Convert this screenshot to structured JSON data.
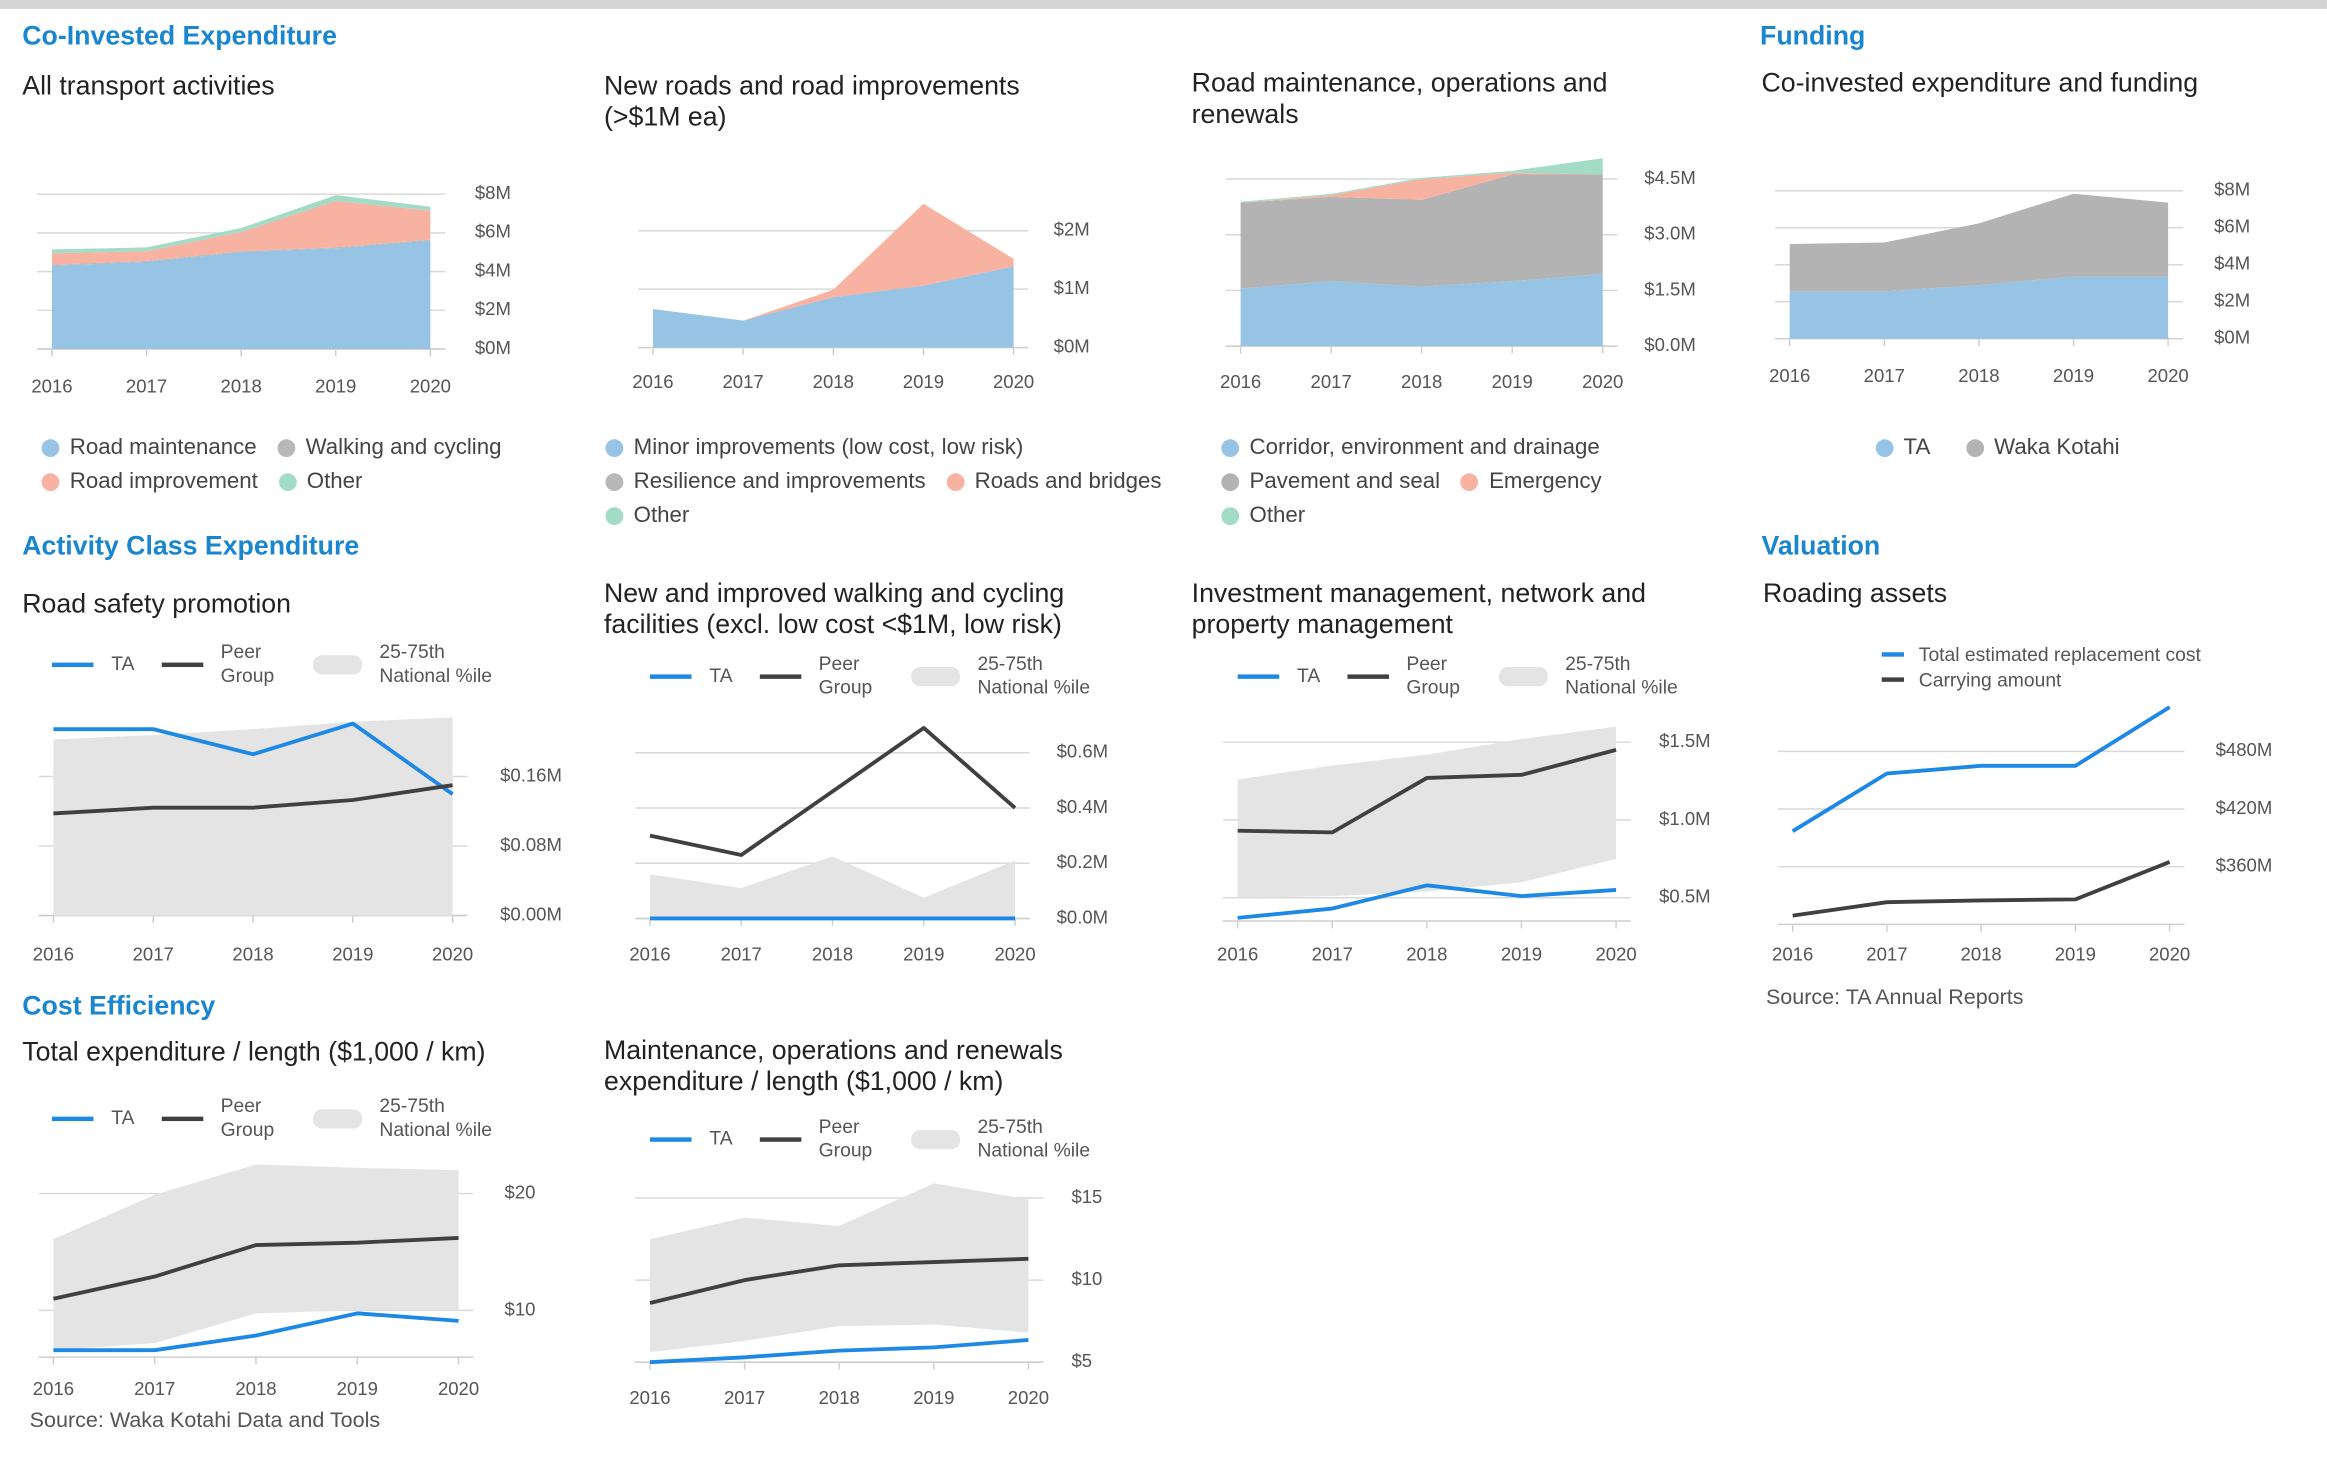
{
  "sections": [
    {
      "title": "Co-Invested Expenditure"
    },
    {
      "title": "Funding"
    },
    {
      "title": "Activity Class Expenditure"
    },
    {
      "title": "Valuation"
    },
    {
      "title": "Cost Efficiency"
    }
  ],
  "sources": [
    "Source: Waka Kotahi Data and Tools",
    "Source: TA Annual Reports"
  ],
  "chart_data": [
    {
      "type": "area",
      "stacked": true,
      "title": "All transport activities",
      "categories": [
        "2016",
        "2017",
        "2018",
        "2019",
        "2020"
      ],
      "series": [
        {
          "name": "Road maintenance",
          "color": "#97c3e5",
          "values": [
            4300000,
            4500000,
            5000000,
            5200000,
            5600000
          ]
        },
        {
          "name": "Walking and cycling",
          "color": "#b8b8b8",
          "values": [
            50000,
            50000,
            50000,
            50000,
            50000
          ]
        },
        {
          "name": "Road improvement",
          "color": "#f8b2a2",
          "values": [
            600000,
            500000,
            1000000,
            2400000,
            1500000
          ]
        },
        {
          "name": "Other",
          "color": "#a2dcc6",
          "values": [
            200000,
            200000,
            200000,
            300000,
            200000
          ]
        }
      ],
      "ylim": [
        0,
        8500000
      ],
      "yticks": [
        {
          "value": 0,
          "label": "$0M"
        },
        {
          "value": 2000000,
          "label": "$2M"
        },
        {
          "value": 4000000,
          "label": "$4M"
        },
        {
          "value": 6000000,
          "label": "$6M"
        },
        {
          "value": 8000000,
          "label": "$8M"
        }
      ],
      "grid": true
    },
    {
      "type": "area",
      "stacked": true,
      "title": "New roads and road improvements (>$1M ea)",
      "categories": [
        "2016",
        "2017",
        "2018",
        "2019",
        "2020"
      ],
      "series": [
        {
          "name": "Minor improvements (low cost, low risk)",
          "color": "#97c3e5",
          "values": [
            660000,
            460000,
            860000,
            1060000,
            1390000
          ]
        },
        {
          "name": "Resilience and improvements",
          "color": "#b8b8b8",
          "values": [
            0,
            0,
            0,
            0,
            0
          ]
        },
        {
          "name": "Roads and bridges",
          "color": "#f8b2a2",
          "values": [
            0,
            0,
            130000,
            1400000,
            130000
          ]
        },
        {
          "name": "Other",
          "color": "#a2dcc6",
          "values": [
            0,
            0,
            0,
            0,
            0
          ]
        }
      ],
      "ylim": [
        0,
        2500000
      ],
      "yticks": [
        {
          "value": 0,
          "label": "$0M"
        },
        {
          "value": 1000000,
          "label": "$1M"
        },
        {
          "value": 2000000,
          "label": "$2M"
        }
      ],
      "grid": true
    },
    {
      "type": "area",
      "stacked": true,
      "title": "Road maintenance, operations and renewals",
      "categories": [
        "2016",
        "2017",
        "2018",
        "2019",
        "2020"
      ],
      "series": [
        {
          "name": "Corridor, environment and drainage",
          "color": "#97c3e5",
          "values": [
            1550000,
            1750000,
            1600000,
            1750000,
            1950000
          ]
        },
        {
          "name": "Pavement and seal",
          "color": "#b3b3b3",
          "values": [
            2310000,
            2270000,
            2340000,
            2870000,
            2670000
          ]
        },
        {
          "name": "Emergency",
          "color": "#f8b2a2",
          "values": [
            0,
            50000,
            560000,
            50000,
            0
          ]
        },
        {
          "name": "Other",
          "color": "#a2dcc6",
          "values": [
            30000,
            30000,
            30000,
            50000,
            440000
          ]
        }
      ],
      "ylim": [
        0,
        5100000
      ],
      "yticks": [
        {
          "value": 0,
          "label": "$0.0M"
        },
        {
          "value": 1500000,
          "label": "$1.5M"
        },
        {
          "value": 3000000,
          "label": "$3.0M"
        },
        {
          "value": 4500000,
          "label": "$4.5M"
        }
      ],
      "grid": true
    },
    {
      "type": "area",
      "stacked": true,
      "title": "Co-invested expenditure and funding",
      "categories": [
        "2016",
        "2017",
        "2018",
        "2019",
        "2020"
      ],
      "series": [
        {
          "name": "TA",
          "color": "#97c3e5",
          "values": [
            2560000,
            2560000,
            2900000,
            3360000,
            3360000
          ]
        },
        {
          "name": "Waka Kotahi",
          "color": "#b3b3b3",
          "values": [
            2560000,
            2640000,
            3340000,
            4480000,
            4000000
          ]
        }
      ],
      "ylim": [
        0,
        8500000
      ],
      "yticks": [
        {
          "value": 0,
          "label": "$0M"
        },
        {
          "value": 2000000,
          "label": "$2M"
        },
        {
          "value": 4000000,
          "label": "$4M"
        },
        {
          "value": 6000000,
          "label": "$6M"
        },
        {
          "value": 8000000,
          "label": "$8M"
        }
      ],
      "grid": true
    },
    {
      "type": "band-line",
      "title": "Road safety promotion",
      "categories": [
        "2016",
        "2017",
        "2018",
        "2019",
        "2020"
      ],
      "series": [
        {
          "name": "TA",
          "color": "#1e88e5",
          "values": [
            214500,
            214500,
            185500,
            221000,
            139600
          ]
        },
        {
          "name": "Peer Group",
          "color": "#404040",
          "values": [
            117400,
            124000,
            124000,
            133000,
            150000
          ]
        },
        {
          "name": "25-75th National %ile",
          "color": "#e4e4e4",
          "low": [
            0,
            0,
            0,
            0,
            0
          ],
          "high": [
            202600,
            207700,
            214500,
            223000,
            228000
          ]
        }
      ],
      "ylim": [
        0,
        240000
      ],
      "yticks": [
        {
          "value": 0,
          "label": "$0.00M"
        },
        {
          "value": 80000,
          "label": "$0.08M"
        },
        {
          "value": 160000,
          "label": "$0.16M"
        }
      ],
      "grid": true
    },
    {
      "type": "band-line",
      "title": "New and improved walking and cycling facilities (excl. low cost <$1M, low risk)",
      "categories": [
        "2016",
        "2017",
        "2018",
        "2019",
        "2020"
      ],
      "series": [
        {
          "name": "TA",
          "color": "#1e88e5",
          "values": [
            0,
            0,
            0,
            0,
            0
          ]
        },
        {
          "name": "Peer Group",
          "color": "#404040",
          "values": [
            300000,
            230000,
            460000,
            690000,
            400000
          ]
        },
        {
          "name": "25-75th National %ile",
          "color": "#e4e4e4",
          "low": [
            0,
            0,
            0,
            0,
            0
          ],
          "high": [
            160000,
            110000,
            225000,
            75000,
            210000
          ]
        }
      ],
      "ylim": [
        0,
        700000
      ],
      "yticks": [
        {
          "value": 0,
          "label": "$0.0M"
        },
        {
          "value": 200000,
          "label": "$0.2M"
        },
        {
          "value": 400000,
          "label": "$0.4M"
        },
        {
          "value": 600000,
          "label": "$0.6M"
        }
      ],
      "grid": true
    },
    {
      "type": "band-line",
      "title": "Investment management, network and property management",
      "categories": [
        "2016",
        "2017",
        "2018",
        "2019",
        "2020"
      ],
      "series": [
        {
          "name": "TA",
          "color": "#1e88e5",
          "values": [
            370000,
            430000,
            580000,
            510000,
            550000
          ]
        },
        {
          "name": "Peer Group",
          "color": "#404040",
          "values": [
            930000,
            920000,
            1270000,
            1290000,
            1450000
          ]
        },
        {
          "name": "25-75th National %ile",
          "color": "#e4e4e4",
          "low": [
            500000,
            510000,
            540000,
            600000,
            750000
          ],
          "high": [
            1260000,
            1350000,
            1420000,
            1520000,
            1600000
          ]
        }
      ],
      "ylim": [
        350000,
        1650000
      ],
      "yticks": [
        {
          "value": 500000,
          "label": "$0.5M"
        },
        {
          "value": 1000000,
          "label": "$1.0M"
        },
        {
          "value": 1500000,
          "label": "$1.5M"
        }
      ],
      "grid": true
    },
    {
      "type": "line",
      "title": "Roading assets",
      "categories": [
        "2016",
        "2017",
        "2018",
        "2019",
        "2020"
      ],
      "series": [
        {
          "name": "Total estimated replacement cost",
          "color": "#1e88e5",
          "values": [
            397000000,
            457000000,
            465000000,
            465000000,
            526000000
          ]
        },
        {
          "name": "Carrying amount",
          "color": "#404040",
          "values": [
            309000000,
            323000000,
            325000000,
            326000000,
            365000000
          ]
        }
      ],
      "ylim": [
        300000000,
        540000000
      ],
      "yticks": [
        {
          "value": 360000000,
          "label": "$360M"
        },
        {
          "value": 420000000,
          "label": "$420M"
        },
        {
          "value": 480000000,
          "label": "$480M"
        }
      ],
      "grid": true
    },
    {
      "type": "band-line",
      "title": "Total expenditure / length ($1,000 / km)",
      "categories": [
        "2016",
        "2017",
        "2018",
        "2019",
        "2020"
      ],
      "series": [
        {
          "name": "TA",
          "color": "#1e88e5",
          "values": [
            6.6,
            6.6,
            7.85,
            9.75,
            9.1
          ]
        },
        {
          "name": "Peer Group",
          "color": "#404040",
          "values": [
            11.0,
            12.9,
            15.6,
            15.8,
            16.2
          ]
        },
        {
          "name": "25-75th National %ile",
          "color": "#e4e4e4",
          "low": [
            6.6,
            7.2,
            9.75,
            10,
            10
          ],
          "high": [
            16.1,
            19.9,
            22.5,
            22.2,
            22
          ]
        }
      ],
      "ylim": [
        6,
        23
      ],
      "yticks": [
        {
          "value": 10,
          "label": "$10"
        },
        {
          "value": 20,
          "label": "$20"
        }
      ],
      "grid": true
    },
    {
      "type": "band-line",
      "title": "Maintenance, operations and renewals expenditure / length ($1,000 / km)",
      "categories": [
        "2016",
        "2017",
        "2018",
        "2019",
        "2020"
      ],
      "series": [
        {
          "name": "TA",
          "color": "#1e88e5",
          "values": [
            5.0,
            5.3,
            5.7,
            5.9,
            6.35
          ]
        },
        {
          "name": "Peer Group",
          "color": "#404040",
          "values": [
            8.6,
            10.0,
            10.9,
            11.1,
            11.3
          ]
        },
        {
          "name": "25-75th National %ile",
          "color": "#e4e4e4",
          "low": [
            5.6,
            6.3,
            7.2,
            7.3,
            6.8
          ],
          "high": [
            12.5,
            13.8,
            13.3,
            15.9,
            14.9
          ]
        }
      ],
      "ylim": [
        5,
        16
      ],
      "yticks": [
        {
          "value": 5,
          "label": "$5"
        },
        {
          "value": 10,
          "label": "$10"
        },
        {
          "value": 15,
          "label": "$15"
        }
      ],
      "grid": true
    }
  ]
}
